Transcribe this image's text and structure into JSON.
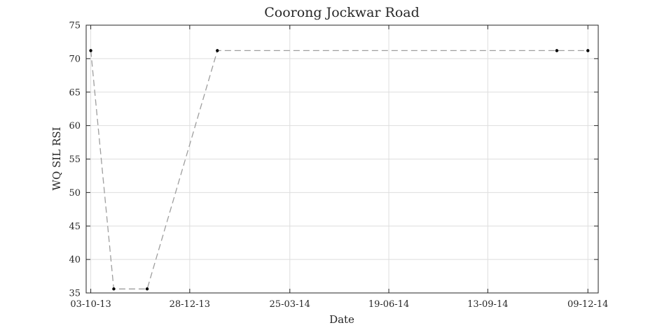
{
  "chart_data": {
    "type": "line",
    "title": "Coorong Jockwar Road",
    "xlabel": "Date",
    "ylabel": "WQ SIL RSI",
    "x_tick_labels": [
      "03-10-13",
      "28-12-13",
      "25-03-14",
      "19-06-14",
      "13-09-14",
      "09-12-14"
    ],
    "x_ticks": [
      "2013-10-03",
      "2013-12-28",
      "2014-03-25",
      "2014-06-19",
      "2014-09-13",
      "2014-12-09"
    ],
    "xlim": [
      "2013-09-29",
      "2014-12-18"
    ],
    "y_ticks": [
      35,
      40,
      45,
      50,
      55,
      60,
      65,
      70,
      75
    ],
    "ylim": [
      35,
      75
    ],
    "grid": true,
    "series": [
      {
        "line_style": "dashed",
        "line_color": "#9e9e9e",
        "marker_color": "#000000",
        "x": [
          "2013-10-03",
          "2013-10-23",
          "2013-11-21",
          "2014-01-21",
          "2014-11-12",
          "2014-12-09"
        ],
        "y": [
          71.2,
          35.6,
          35.6,
          71.2,
          71.2,
          71.2
        ]
      }
    ]
  }
}
